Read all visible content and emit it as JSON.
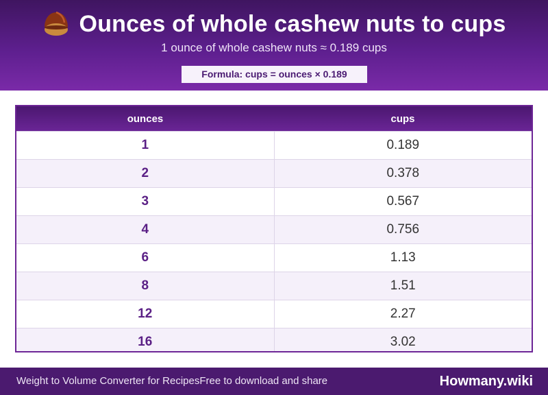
{
  "header": {
    "title": "Ounces of whole cashew nuts to cups",
    "subtitle": "1 ounce of whole cashew nuts ≈ 0.189 cups",
    "formula": "Formula: cups = ounces × 0.189",
    "icon": "chestnut-icon"
  },
  "table": {
    "columns": [
      "ounces",
      "cups"
    ],
    "rows": [
      [
        "1",
        "0.189"
      ],
      [
        "2",
        "0.378"
      ],
      [
        "3",
        "0.567"
      ],
      [
        "4",
        "0.756"
      ],
      [
        "6",
        "1.13"
      ],
      [
        "8",
        "1.51"
      ],
      [
        "12",
        "2.27"
      ],
      [
        "16",
        "3.02"
      ]
    ]
  },
  "footer": {
    "left_text": "Weight to Volume Converter for Recipes",
    "middle_text": "Free to download and share",
    "brand": "Howmany.wiki"
  },
  "colors": {
    "header_purple": "#5d1f8e",
    "accent_purple": "#6d2596",
    "footer_purple": "#4b1a6f"
  }
}
